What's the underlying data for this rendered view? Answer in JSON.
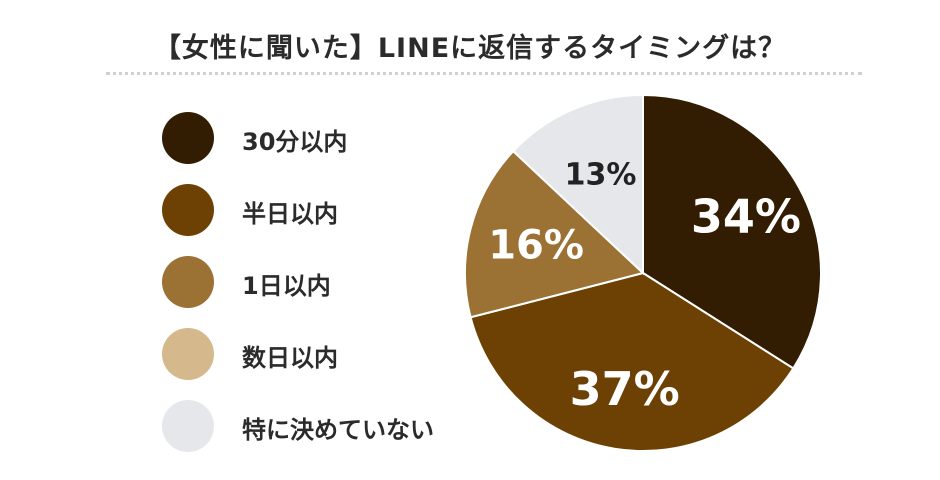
{
  "chart_data": {
    "type": "pie",
    "title": "【女性に聞いた】LINEに返信するタイミングは？",
    "categories": [
      "30分以内",
      "半日以内",
      "1日以内",
      "数日以内",
      "特に決めていない"
    ],
    "values": [
      34,
      37,
      16,
      0,
      13
    ],
    "value_labels": [
      "34%",
      "37%",
      "16%",
      "",
      "13%"
    ],
    "colors": [
      "#321d02",
      "#6d4103",
      "#9b7134",
      "#d5b88c",
      "#e5e7ea"
    ],
    "label_colors": [
      "#ffffff",
      "#ffffff",
      "#ffffff",
      "#ffffff",
      "#222222"
    ],
    "legend_position": "left",
    "start_angle": "12 o'clock",
    "direction": "clockwise"
  }
}
